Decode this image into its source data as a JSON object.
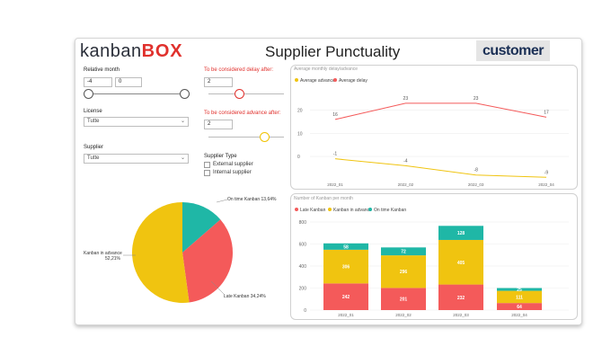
{
  "header": {
    "logo_part1": "kanban",
    "logo_part2": "BOX",
    "title": "Supplier Punctuality",
    "customer_logo": "customer"
  },
  "filters": {
    "relative_month": {
      "label": "Relative month",
      "from": "-4",
      "to": "0"
    },
    "delay_after": {
      "label": "To be considered delay after:",
      "value": "2"
    },
    "advance_after": {
      "label": "To be considered advance after:",
      "value": "2"
    },
    "license": {
      "label": "License",
      "value": "Tutte"
    },
    "supplier": {
      "label": "Supplier",
      "value": "Tutte"
    },
    "supplier_type": {
      "label": "Supplier Type",
      "options": [
        "External supplier",
        "Internal supplier"
      ]
    }
  },
  "pie_chart": {
    "chart_data": {
      "type": "pie",
      "slices": [
        {
          "label": "On time Kanban",
          "value": 13.64,
          "display": "On time Kanban 13,64%",
          "color": "#1fb7a6"
        },
        {
          "label": "Late Kanban",
          "value": 34.24,
          "display": "Late Kanban 34,24%",
          "color": "#f45a5a"
        },
        {
          "label": "Kanban in advance",
          "value": 52.21,
          "display_line1": "Kanban in advance",
          "display_line2": "52,21%",
          "color": "#f0c410"
        }
      ]
    }
  },
  "line_chart": {
    "title": "Average monthly delay/advance",
    "legend": [
      {
        "name": "Average advance",
        "color": "#f0c410"
      },
      {
        "name": "Average delay",
        "color": "#f45a5a"
      }
    ],
    "chart_data": {
      "type": "line",
      "categories": [
        "2022_01",
        "2022_02",
        "2022_03",
        "2022_04"
      ],
      "series": [
        {
          "name": "Average delay",
          "values": [
            16,
            23,
            23,
            17
          ],
          "labels": [
            "16",
            "23",
            "23",
            "17"
          ],
          "color": "#f45a5a"
        },
        {
          "name": "Average advance",
          "values": [
            -1,
            -4,
            -8,
            -9
          ],
          "labels": [
            "-1",
            "-4",
            "-8",
            "-9"
          ],
          "color": "#f0c410"
        }
      ],
      "yticks": [
        "20",
        "10",
        "0"
      ],
      "ylim": [
        -12,
        28
      ]
    }
  },
  "bar_chart": {
    "title": "Number of Kanban per month",
    "legend": [
      {
        "name": "Late Kanban",
        "color": "#f45a5a"
      },
      {
        "name": "Kanban in advance",
        "color": "#f0c410"
      },
      {
        "name": "On time Kanban",
        "color": "#1fb7a6"
      }
    ],
    "chart_data": {
      "type": "bar",
      "stacked": true,
      "categories": [
        "2022_01",
        "2022_02",
        "2022_03",
        "2022_04"
      ],
      "series": [
        {
          "name": "Late Kanban",
          "values": [
            242,
            201,
            232,
            64
          ],
          "color": "#f45a5a"
        },
        {
          "name": "Kanban in advance",
          "values": [
            306,
            296,
            405,
            111
          ],
          "color": "#f0c410"
        },
        {
          "name": "On time Kanban",
          "values": [
            58,
            72,
            128,
            25
          ],
          "color": "#1fb7a6"
        }
      ],
      "yticks": [
        "0",
        "200",
        "400",
        "600",
        "800"
      ],
      "ylim": [
        0,
        800
      ]
    }
  }
}
